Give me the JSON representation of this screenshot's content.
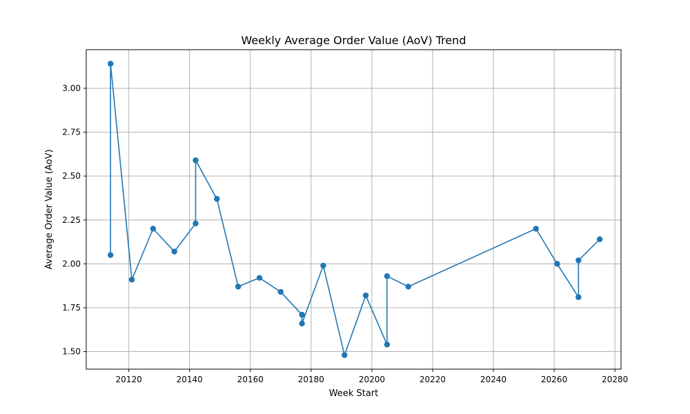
{
  "chart_data": {
    "type": "line",
    "title": "Weekly Average Order Value (AoV) Trend",
    "xlabel": "Week Start",
    "ylabel": "Average Order Value (AoV)",
    "xlim": [
      20106,
      20282
    ],
    "ylim": [
      1.4,
      3.22
    ],
    "xticks": [
      20120,
      20140,
      20160,
      20180,
      20200,
      20220,
      20240,
      20260,
      20280
    ],
    "yticks": [
      1.5,
      1.75,
      2.0,
      2.25,
      2.5,
      2.75,
      3.0
    ],
    "ytick_labels": [
      "1.50",
      "1.75",
      "2.00",
      "2.25",
      "2.50",
      "2.75",
      "3.00"
    ],
    "grid": true,
    "line_color": "#1f77b4",
    "marker": "circle",
    "series": [
      {
        "x": [
          20114,
          20114,
          20121,
          20128,
          20135,
          20142,
          20142,
          20149,
          20156,
          20163,
          20170,
          20177,
          20177,
          20184,
          20191,
          20198,
          20205,
          20205,
          20212,
          20254,
          20261,
          20268,
          20268,
          20275
        ],
        "values": [
          2.05,
          3.14,
          1.91,
          2.2,
          2.07,
          2.23,
          2.59,
          2.37,
          1.87,
          1.92,
          1.84,
          1.71,
          1.66,
          1.99,
          1.48,
          1.82,
          1.54,
          1.93,
          1.87,
          2.2,
          2.0,
          1.81,
          2.02,
          2.14
        ]
      }
    ]
  }
}
